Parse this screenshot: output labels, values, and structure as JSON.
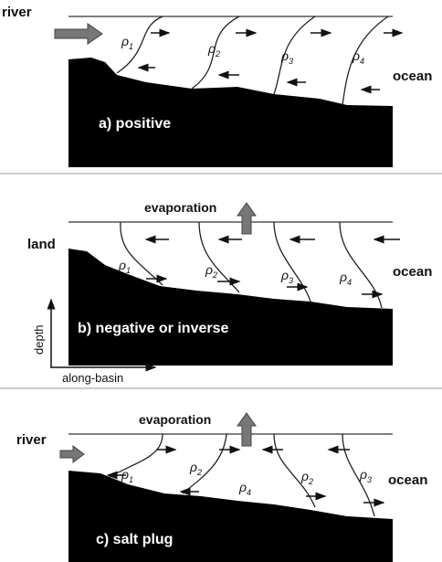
{
  "panels": [
    {
      "caption": "a) positive",
      "inflow": "river",
      "outflow": "ocean",
      "densities": [
        {
          "symbol": "ρ",
          "index": "1"
        },
        {
          "symbol": "ρ",
          "index": "2"
        },
        {
          "symbol": "ρ",
          "index": "3"
        },
        {
          "symbol": "ρ",
          "index": "4"
        }
      ]
    },
    {
      "caption": "b) negative or inverse",
      "top": "evaporation",
      "inflow": "land",
      "outflow": "ocean",
      "densities": [
        {
          "symbol": "ρ",
          "index": "1"
        },
        {
          "symbol": "ρ",
          "index": "2"
        },
        {
          "symbol": "ρ",
          "index": "3"
        },
        {
          "symbol": "ρ",
          "index": "4"
        }
      ],
      "axes": {
        "vertical": "depth",
        "horizontal": "along-basin"
      }
    },
    {
      "caption": "c) salt plug",
      "top": "evaporation",
      "inflow": "river",
      "outflow": "ocean",
      "densities": [
        {
          "symbol": "ρ",
          "index": "1"
        },
        {
          "symbol": "ρ",
          "index": "2"
        },
        {
          "symbol": "ρ",
          "index": "4"
        },
        {
          "symbol": "ρ",
          "index": "2"
        },
        {
          "symbol": "ρ",
          "index": "3"
        }
      ]
    }
  ]
}
